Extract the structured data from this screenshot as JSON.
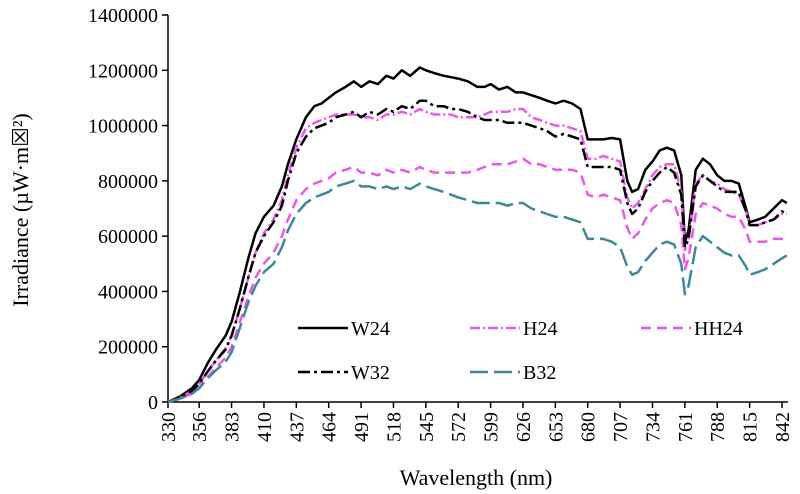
{
  "chart_data": {
    "type": "line",
    "xlabel": "Wavelength (nm)",
    "ylabel": "Irradiance (µW·m☒²)",
    "xlim": [
      330,
      847
    ],
    "ylim": [
      0,
      1400000
    ],
    "x_ticks": [
      "330",
      "356",
      "383",
      "410",
      "437",
      "464",
      "491",
      "518",
      "545",
      "572",
      "599",
      "626",
      "653",
      "680",
      "707",
      "734",
      "761",
      "788",
      "815",
      "842"
    ],
    "y_ticks": [
      "0",
      "200000",
      "400000",
      "600000",
      "800000",
      "1000000",
      "1200000",
      "1400000"
    ],
    "x": [
      330,
      340,
      350,
      356,
      363,
      370,
      378,
      383,
      390,
      397,
      403,
      410,
      418,
      425,
      430,
      437,
      445,
      452,
      458,
      464,
      470,
      478,
      485,
      491,
      498,
      505,
      512,
      518,
      525,
      532,
      540,
      545,
      552,
      560,
      566,
      572,
      580,
      588,
      594,
      599,
      606,
      613,
      620,
      626,
      633,
      640,
      646,
      653,
      660,
      667,
      674,
      680,
      687,
      693,
      700,
      707,
      713,
      717,
      722,
      728,
      734,
      740,
      746,
      752,
      758,
      761,
      764,
      770,
      776,
      782,
      788,
      794,
      800,
      806,
      812,
      815,
      822,
      828,
      835,
      842,
      846
    ],
    "series": [
      {
        "name": "W24",
        "color": "#000000",
        "dash": "",
        "values": [
          0,
          20000,
          50000,
          80000,
          140000,
          190000,
          240000,
          290000,
          400000,
          520000,
          610000,
          670000,
          710000,
          780000,
          860000,
          950000,
          1030000,
          1070000,
          1080000,
          1100000,
          1120000,
          1140000,
          1160000,
          1140000,
          1160000,
          1150000,
          1180000,
          1170000,
          1200000,
          1180000,
          1210000,
          1200000,
          1190000,
          1180000,
          1175000,
          1170000,
          1160000,
          1140000,
          1140000,
          1150000,
          1130000,
          1140000,
          1120000,
          1120000,
          1110000,
          1100000,
          1090000,
          1080000,
          1090000,
          1080000,
          1060000,
          950000,
          950000,
          950000,
          955000,
          950000,
          800000,
          760000,
          770000,
          840000,
          870000,
          910000,
          920000,
          910000,
          820000,
          580000,
          620000,
          840000,
          880000,
          860000,
          820000,
          800000,
          800000,
          790000,
          700000,
          650000,
          660000,
          670000,
          700000,
          730000,
          720000
        ]
      },
      {
        "name": "H24",
        "color": "#ee55ee",
        "dash": "10 3 2 3",
        "values": [
          0,
          15000,
          40000,
          65000,
          110000,
          150000,
          195000,
          240000,
          340000,
          450000,
          540000,
          610000,
          660000,
          730000,
          820000,
          920000,
          990000,
          1010000,
          1020000,
          1030000,
          1040000,
          1040000,
          1040000,
          1030000,
          1030000,
          1020000,
          1040000,
          1040000,
          1050000,
          1040000,
          1060000,
          1050000,
          1040000,
          1040000,
          1040000,
          1030000,
          1030000,
          1030000,
          1040000,
          1050000,
          1050000,
          1050000,
          1060000,
          1060000,
          1030000,
          1020000,
          1010000,
          1000000,
          1000000,
          990000,
          980000,
          880000,
          880000,
          890000,
          880000,
          870000,
          740000,
          700000,
          720000,
          770000,
          820000,
          850000,
          860000,
          860000,
          760000,
          550000,
          590000,
          790000,
          820000,
          800000,
          790000,
          770000,
          760000,
          750000,
          690000,
          640000,
          640000,
          650000,
          660000,
          680000,
          680000
        ]
      },
      {
        "name": "HH24",
        "color": "#ee55ee",
        "dash": "10 6",
        "values": [
          0,
          12000,
          30000,
          50000,
          90000,
          125000,
          160000,
          200000,
          290000,
          380000,
          450000,
          500000,
          540000,
          600000,
          660000,
          730000,
          770000,
          790000,
          800000,
          810000,
          830000,
          840000,
          850000,
          830000,
          830000,
          820000,
          840000,
          830000,
          840000,
          830000,
          850000,
          840000,
          830000,
          830000,
          830000,
          830000,
          830000,
          840000,
          850000,
          860000,
          860000,
          860000,
          870000,
          880000,
          860000,
          860000,
          850000,
          840000,
          840000,
          840000,
          830000,
          750000,
          740000,
          750000,
          740000,
          730000,
          630000,
          590000,
          610000,
          660000,
          700000,
          720000,
          730000,
          720000,
          640000,
          480000,
          520000,
          680000,
          720000,
          710000,
          700000,
          680000,
          670000,
          670000,
          620000,
          580000,
          580000,
          580000,
          590000,
          590000,
          590000
        ]
      },
      {
        "name": "W32",
        "color": "#000000",
        "dash": "12 4 3 4",
        "values": [
          0,
          15000,
          40000,
          65000,
          110000,
          150000,
          190000,
          240000,
          340000,
          450000,
          540000,
          600000,
          650000,
          710000,
          800000,
          900000,
          960000,
          990000,
          1000000,
          1010000,
          1030000,
          1040000,
          1050000,
          1030000,
          1050000,
          1040000,
          1060000,
          1050000,
          1070000,
          1060000,
          1090000,
          1090000,
          1070000,
          1070000,
          1060000,
          1060000,
          1050000,
          1030000,
          1020000,
          1020000,
          1020000,
          1010000,
          1010000,
          1010000,
          1000000,
          990000,
          980000,
          960000,
          970000,
          960000,
          950000,
          850000,
          850000,
          850000,
          850000,
          840000,
          720000,
          680000,
          700000,
          760000,
          800000,
          830000,
          850000,
          830000,
          750000,
          560000,
          590000,
          780000,
          820000,
          800000,
          780000,
          760000,
          760000,
          760000,
          690000,
          640000,
          640000,
          650000,
          660000,
          690000,
          680000
        ]
      },
      {
        "name": "B32",
        "color": "#3a8a9a",
        "dash": "18 6",
        "values": [
          0,
          12000,
          30000,
          50000,
          85000,
          115000,
          145000,
          180000,
          270000,
          360000,
          420000,
          470000,
          500000,
          560000,
          620000,
          680000,
          720000,
          740000,
          750000,
          760000,
          780000,
          790000,
          800000,
          780000,
          780000,
          770000,
          780000,
          770000,
          780000,
          770000,
          790000,
          780000,
          770000,
          760000,
          750000,
          740000,
          730000,
          720000,
          720000,
          720000,
          720000,
          710000,
          720000,
          720000,
          700000,
          690000,
          680000,
          670000,
          670000,
          660000,
          650000,
          590000,
          590000,
          590000,
          580000,
          560000,
          490000,
          460000,
          470000,
          510000,
          540000,
          570000,
          580000,
          570000,
          500000,
          390000,
          420000,
          560000,
          600000,
          580000,
          560000,
          540000,
          530000,
          530000,
          490000,
          460000,
          470000,
          480000,
          500000,
          520000,
          530000
        ]
      }
    ],
    "legend": {
      "position": "inside-bottom",
      "rows": [
        [
          "W24",
          "H24",
          "HH24"
        ],
        [
          "W32",
          "B32"
        ]
      ]
    },
    "grid": false
  }
}
